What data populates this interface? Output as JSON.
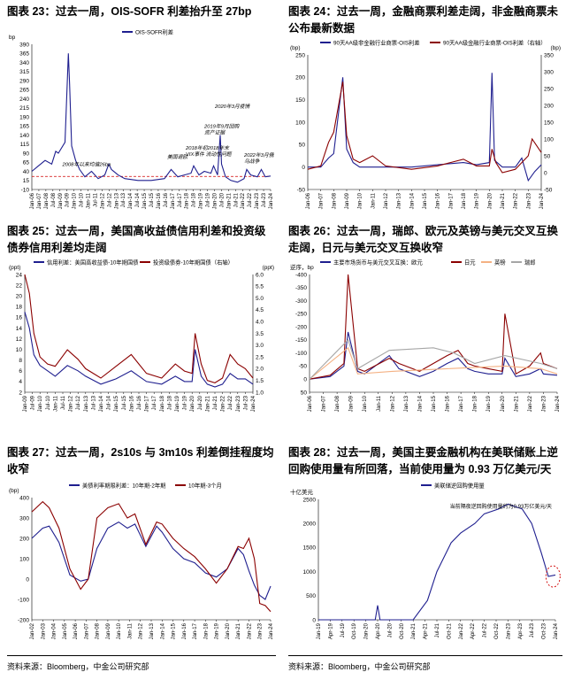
{
  "charts": [
    {
      "id": "c23",
      "title": "图表 23：过去一周，OIS-SOFR 利差抬升至 27bp",
      "unit_left": "bp",
      "legend": [
        {
          "label": "OIS-SOFR利差",
          "color": "#1f1f8f"
        }
      ],
      "annotations": [
        "2008年以来均值26bp",
        "美国退欧",
        "2018年初2018年末\nVIX事件  流动性问题",
        "2019年9月回购\n资产证据",
        "2020年3月疫情",
        "2022年3月俄\n乌战争"
      ]
    },
    {
      "id": "c24",
      "title": "图表 24：过去一周，金融商票利差走阔，非金融商票未公布最新数据",
      "unit_left": "(bp)",
      "unit_right": "(bp)",
      "legend": [
        {
          "label": "90天AA级非金融行业商票-OIS利差",
          "color": "#1f1f8f"
        },
        {
          "label": "90天AA级金融行业商票-OIS利差（右轴）",
          "color": "#8b0000"
        }
      ]
    },
    {
      "id": "c25",
      "title": "图表 25：过去一周，美国高收益债信用利差和投资级债券信用利差均走阔",
      "unit_left": "(ppt)",
      "unit_right": "(ppt)",
      "legend": [
        {
          "label": "信用利差：美国高收益债-10年期国债",
          "color": "#1f1f8f"
        },
        {
          "label": "投资级债券-10年期国债（右轴）",
          "color": "#8b0000"
        }
      ]
    },
    {
      "id": "c26",
      "title": "图表 26：过去一周，瑞郎、欧元及英镑与美元交叉互换走阔，日元与美元交叉互换收窄",
      "unit_left": "逆序，bp",
      "legend": [
        {
          "label": "主要市场货币与美元交叉互换：欧元",
          "color": "#1f1f8f"
        },
        {
          "label": "日元",
          "color": "#8b0000"
        },
        {
          "label": "英镑",
          "color": "#f4b183"
        },
        {
          "label": "瑞郎",
          "color": "#a6a6a6"
        }
      ]
    },
    {
      "id": "c27",
      "title": "图表 27：过去一周，2s10s 与 3m10s 利差倒挂程度均收窄",
      "unit_left": "(bp)",
      "legend": [
        {
          "label": "美债利率期限利差：10年期-2年期",
          "color": "#1f1f8f"
        },
        {
          "label": "10年期-3个月",
          "color": "#8b0000"
        }
      ]
    },
    {
      "id": "c28",
      "title": "图表 28：过去一周，美国主要金融机构在美联储账上逆回购使用量有所回落，当前使用量为 0.93 万亿美元/天",
      "unit_left": "十亿美元",
      "legend": [
        {
          "label": "美联储逆回购使用量",
          "color": "#1f1f8f"
        }
      ],
      "annotations": [
        "当前隔夜逆回购使用量约为0.93万亿美元/天"
      ]
    }
  ],
  "source_text": "资料来源：Bloomberg，中金公司研究部",
  "chart_data": [
    {
      "type": "line",
      "title": "图表 23：过去一周，OIS-SOFR 利差抬升至 27bp",
      "ylabel": "bp",
      "ylim": [
        -10,
        390
      ],
      "yticks": [
        -10,
        15,
        40,
        65,
        90,
        115,
        140,
        165,
        190,
        215,
        240,
        265,
        290,
        315,
        340,
        365,
        390
      ],
      "xlabels": [
        "Jan-06",
        "Jan-07",
        "Jan-08",
        "Jul-08",
        "Jan-09",
        "Jul-09",
        "Jan-10",
        "Jul-10",
        "Jan-11",
        "Jul-11",
        "Jan-12",
        "Jul-12",
        "Jan-13",
        "Jul-13",
        "Jan-14",
        "Jul-14",
        "Jan-15",
        "Jul-15",
        "Jan-16",
        "Jul-16",
        "Jan-17",
        "Jul-17",
        "Jan-18",
        "Jul-18",
        "Jan-19",
        "Jul-19",
        "Jan-20",
        "Jul-20",
        "Jan-21",
        "Jul-21",
        "Jan-22",
        "Jul-22",
        "Jan-23",
        "Jul-23",
        "Jan-24"
      ],
      "reference_line": 26,
      "series": [
        {
          "name": "OIS-SOFR利差",
          "x": [
            2006,
            2006.5,
            2007,
            2007.5,
            2007.8,
            2008,
            2008.5,
            2008.75,
            2008.85,
            2009,
            2009.3,
            2009.6,
            2010,
            2010.5,
            2011,
            2011.5,
            2011.8,
            2012,
            2012.5,
            2013,
            2014,
            2015,
            2016,
            2016.5,
            2017,
            2017.5,
            2018,
            2018.2,
            2018.6,
            2019,
            2019.5,
            2019.7,
            2020,
            2020.2,
            2020.3,
            2020.6,
            2021,
            2021.5,
            2022,
            2022.2,
            2022.5,
            2023,
            2023.3,
            2023.6,
            2024
          ],
          "y": [
            40,
            55,
            70,
            60,
            95,
            90,
            120,
            365,
            280,
            110,
            70,
            45,
            25,
            40,
            20,
            30,
            60,
            45,
            30,
            20,
            15,
            15,
            20,
            45,
            25,
            30,
            35,
            55,
            30,
            40,
            35,
            55,
            30,
            140,
            60,
            25,
            15,
            10,
            20,
            45,
            30,
            25,
            45,
            25,
            27
          ]
        }
      ]
    },
    {
      "type": "line",
      "title": "图表 24：过去一周，金融商票利差走阔，非金融商票未公布最新数据",
      "ylabel": "bp",
      "ylim": [
        -50,
        250
      ],
      "ylim_right": [
        -50,
        350
      ],
      "yticks": [
        -50,
        0,
        50,
        100,
        150,
        200,
        250
      ],
      "yticks_right": [
        -50,
        0,
        50,
        100,
        150,
        200,
        250,
        300,
        350
      ],
      "xlabels": [
        "Jan-06",
        "Jan-07",
        "Jan-08",
        "Jan-09",
        "Jan-10",
        "Jan-11",
        "Jan-12",
        "Jan-13",
        "Jan-14",
        "Jan-15",
        "Jan-16",
        "Jan-17",
        "Jan-18",
        "Jan-19",
        "Jan-20",
        "Jan-21",
        "Jan-22",
        "Jan-23",
        "Jan-24"
      ],
      "series": [
        {
          "name": "90天AA级非金融行业商票-OIS利差",
          "x": [
            2006,
            2007,
            2007.6,
            2008,
            2008.7,
            2009,
            2009.5,
            2010,
            2012,
            2014,
            2016,
            2018,
            2019,
            2020,
            2020.2,
            2020.4,
            2021,
            2022,
            2022.5,
            2023,
            2023.5,
            2024
          ],
          "y": [
            0,
            0,
            20,
            30,
            200,
            40,
            10,
            0,
            0,
            0,
            5,
            10,
            5,
            10,
            210,
            15,
            0,
            0,
            20,
            -30,
            -10,
            5
          ]
        },
        {
          "name": "90天AA级金融行业商票-OIS利差（右轴）",
          "x": [
            2006,
            2007,
            2007.6,
            2008,
            2008.7,
            2009,
            2009.5,
            2010,
            2011,
            2012,
            2014,
            2016,
            2017,
            2018,
            2019,
            2020,
            2020.2,
            2020.5,
            2021,
            2022,
            2023,
            2023.3,
            2024
          ],
          "y": [
            10,
            20,
            90,
            120,
            270,
            110,
            40,
            30,
            50,
            20,
            10,
            20,
            30,
            40,
            20,
            20,
            70,
            30,
            0,
            10,
            50,
            100,
            60
          ]
        }
      ]
    },
    {
      "type": "line",
      "title": "图表 25：过去一周，美国高收益债信用利差和投资级债券信用利差均走阔",
      "ylabel": "ppt",
      "ylim": [
        2,
        24
      ],
      "ylim_right": [
        1.0,
        6.0
      ],
      "yticks": [
        2,
        4,
        6,
        8,
        10,
        12,
        14,
        16,
        18,
        20,
        22,
        24
      ],
      "yticks_right": [
        1.0,
        1.5,
        2.0,
        2.5,
        3.0,
        3.5,
        4.0,
        4.5,
        5.0,
        5.5,
        6.0
      ],
      "xlabels": [
        "Jan-09",
        "Jul-09",
        "Jan-10",
        "Jul-10",
        "Jan-11",
        "Jul-11",
        "Jan-12",
        "Jul-12",
        "Jan-13",
        "Jul-13",
        "Jan-14",
        "Jul-14",
        "Jan-15",
        "Jul-15",
        "Jan-16",
        "Jul-16",
        "Jan-17",
        "Jul-17",
        "Jan-18",
        "Jul-18",
        "Jan-19",
        "Jul-19",
        "Jan-20",
        "Jul-20",
        "Jan-21",
        "Jul-21",
        "Jan-22",
        "Jul-22",
        "Jan-23",
        "Jul-23",
        "Jan-24"
      ],
      "series": [
        {
          "name": "信用利差：美国高收益债-10年期国债",
          "x": [
            2009,
            2009.3,
            2009.6,
            2010,
            2010.5,
            2011,
            2011.8,
            2012.5,
            2013,
            2014,
            2015,
            2016,
            2016.5,
            2017,
            2018,
            2018.9,
            2019.5,
            2020,
            2020.2,
            2020.6,
            2021,
            2021.5,
            2022,
            2022.5,
            2023,
            2023.5,
            2024
          ],
          "y": [
            17,
            14,
            9,
            7,
            6,
            5,
            7,
            6,
            5,
            3.5,
            4.5,
            6,
            5,
            4,
            3.5,
            5,
            4,
            4,
            10,
            5,
            3.5,
            3,
            3.5,
            5.5,
            4.5,
            4.5,
            3.5
          ]
        },
        {
          "name": "投资级债券-10年期国债（右轴）",
          "x": [
            2009,
            2009.3,
            2009.6,
            2010,
            2010.5,
            2011,
            2011.8,
            2012.5,
            2013,
            2014,
            2015,
            2016,
            2016.5,
            2017,
            2018,
            2018.9,
            2019.5,
            2020,
            2020.2,
            2020.6,
            2021,
            2021.5,
            2022,
            2022.5,
            2023,
            2023.5,
            2024
          ],
          "y": [
            6.0,
            5.2,
            3.5,
            2.5,
            2.2,
            2.1,
            2.8,
            2.4,
            2.0,
            1.6,
            2.1,
            2.6,
            2.2,
            1.8,
            1.6,
            2.2,
            1.9,
            1.8,
            3.5,
            2.2,
            1.5,
            1.4,
            1.6,
            2.6,
            2.2,
            2.0,
            1.6
          ]
        }
      ]
    },
    {
      "type": "line",
      "title": "图表 26：过去一周，瑞郎、欧元及英镑与美元交叉互换走阔，日元与美元交叉互换收窄",
      "ylabel": "逆序，bp",
      "ylim": [
        -400,
        50
      ],
      "inverted": true,
      "yticks": [
        -400,
        -350,
        -300,
        -250,
        -200,
        -150,
        -100,
        -50,
        0,
        50
      ],
      "xlabels": [
        "Jan-06",
        "Jan-07",
        "Jan-08",
        "Jan-09",
        "Jan-10",
        "Jan-11",
        "Jan-12",
        "Jan-13",
        "Jan-14",
        "Jan-15",
        "Jan-16",
        "Jan-17",
        "Jan-18",
        "Jan-19",
        "Jan-20",
        "Jan-21",
        "Jan-22",
        "Jan-23",
        "Jan-24"
      ],
      "series": [
        {
          "name": "主要市场货币与美元交叉互换：欧元",
          "x": [
            2006,
            2007.5,
            2008.5,
            2008.8,
            2009.5,
            2010,
            2011.8,
            2012.5,
            2014,
            2015,
            2016,
            2016.8,
            2017.5,
            2018,
            2019,
            2020,
            2020.2,
            2021,
            2022,
            2022.8,
            2023,
            2024
          ],
          "y": [
            0,
            -10,
            -50,
            -180,
            -30,
            -20,
            -90,
            -40,
            -10,
            -30,
            -60,
            -80,
            -40,
            -30,
            -20,
            -20,
            -80,
            -10,
            -20,
            -40,
            -20,
            -15
          ]
        },
        {
          "name": "日元",
          "x": [
            2006,
            2007.5,
            2008.5,
            2008.8,
            2009.5,
            2010,
            2011.8,
            2012.5,
            2014,
            2015,
            2016,
            2016.8,
            2017.5,
            2018,
            2019,
            2020,
            2020.2,
            2021,
            2022,
            2022.8,
            2023,
            2024
          ],
          "y": [
            0,
            -15,
            -60,
            -400,
            -40,
            -30,
            -80,
            -60,
            -30,
            -60,
            -90,
            -110,
            -60,
            -50,
            -40,
            -30,
            -250,
            -20,
            -50,
            -100,
            -60,
            -40
          ]
        },
        {
          "name": "英镑",
          "x": [
            2006,
            2008.8,
            2009.5,
            2012,
            2016,
            2020.2,
            2022.8,
            2024
          ],
          "y": [
            0,
            -120,
            -20,
            -30,
            -40,
            -50,
            -40,
            -20
          ]
        },
        {
          "name": "瑞郎",
          "x": [
            2006,
            2008.8,
            2009.5,
            2011.8,
            2015,
            2016.5,
            2018,
            2020.2,
            2022.8,
            2024
          ],
          "y": [
            0,
            -150,
            -40,
            -110,
            -120,
            -100,
            -60,
            -90,
            -60,
            -40
          ]
        }
      ]
    },
    {
      "type": "line",
      "title": "图表 27：过去一周，2s10s 与 3m10s 利差倒挂程度均收窄",
      "ylabel": "bp",
      "ylim": [
        -200,
        400
      ],
      "yticks": [
        -200,
        -100,
        0,
        100,
        200,
        300,
        400
      ],
      "xlabels": [
        "Jan-02",
        "Jan-03",
        "Jan-04",
        "Jan-05",
        "Jan-06",
        "Jan-07",
        "Jan-08",
        "Jan-09",
        "Jan-10",
        "Jan-11",
        "Jan-12",
        "Jan-13",
        "Jan-14",
        "Jan-15",
        "Jan-16",
        "Jan-17",
        "Jan-18",
        "Jan-19",
        "Jan-20",
        "Jan-21",
        "Jan-22",
        "Jan-23",
        "Jan-24"
      ],
      "series": [
        {
          "name": "美债利率期限利差：10年期-2年期",
          "x": [
            2002,
            2003,
            2003.6,
            2004.5,
            2005.5,
            2006.5,
            2007.2,
            2008,
            2009,
            2010,
            2010.8,
            2011.5,
            2012.5,
            2013.5,
            2014,
            2015,
            2016,
            2017,
            2018,
            2019,
            2020,
            2021,
            2021.5,
            2022,
            2022.5,
            2023,
            2023.5,
            2024
          ],
          "y": [
            200,
            250,
            260,
            180,
            20,
            -10,
            0,
            150,
            250,
            280,
            250,
            270,
            160,
            260,
            230,
            150,
            100,
            80,
            30,
            10,
            50,
            150,
            120,
            40,
            -30,
            -80,
            -100,
            -35
          ]
        },
        {
          "name": "10年期-3个月",
          "x": [
            2002,
            2003,
            2003.6,
            2004.5,
            2005.5,
            2006.5,
            2007.2,
            2008,
            2009,
            2010,
            2010.8,
            2011.5,
            2012.5,
            2013.5,
            2014,
            2015,
            2016,
            2017,
            2018,
            2019,
            2020,
            2021,
            2021.5,
            2022,
            2022.5,
            2023,
            2023.5,
            2024
          ],
          "y": [
            330,
            380,
            350,
            250,
            50,
            -50,
            0,
            300,
            350,
            370,
            300,
            320,
            170,
            280,
            270,
            200,
            150,
            110,
            50,
            -20,
            50,
            160,
            150,
            200,
            100,
            -120,
            -130,
            -160
          ]
        }
      ]
    },
    {
      "type": "line",
      "title": "图表 28：过去一周，美国主要金融机构在美联储账上逆回购使用量有所回落，当前使用量为 0.93 万亿美元/天",
      "ylabel": "十亿美元",
      "ylim": [
        0,
        2500
      ],
      "yticks": [
        0,
        500,
        1000,
        1500,
        2000,
        2500
      ],
      "xlabels": [
        "Jan-19",
        "Apr-19",
        "Jul-19",
        "Oct-19",
        "Jan-20",
        "Apr-20",
        "Jul-20",
        "Oct-20",
        "Jan-21",
        "Apr-21",
        "Jul-21",
        "Oct-21",
        "Jan-22",
        "Apr-22",
        "Jul-22",
        "Oct-22",
        "Jan-23",
        "Apr-23",
        "Jul-23",
        "Oct-23",
        "Jan-24"
      ],
      "series": [
        {
          "name": "美联储逆回购使用量",
          "x": [
            2019,
            2019.9,
            2020.2,
            2020.25,
            2020.3,
            2021,
            2021.3,
            2021.5,
            2021.8,
            2022,
            2022.3,
            2022.5,
            2022.8,
            2023,
            2023.3,
            2023.5,
            2023.7,
            2023.85,
            2024
          ],
          "y": [
            0,
            0,
            0,
            300,
            0,
            0,
            400,
            1000,
            1600,
            1800,
            2000,
            2200,
            2300,
            2400,
            2300,
            2000,
            1400,
            900,
            930
          ]
        }
      ]
    }
  ]
}
